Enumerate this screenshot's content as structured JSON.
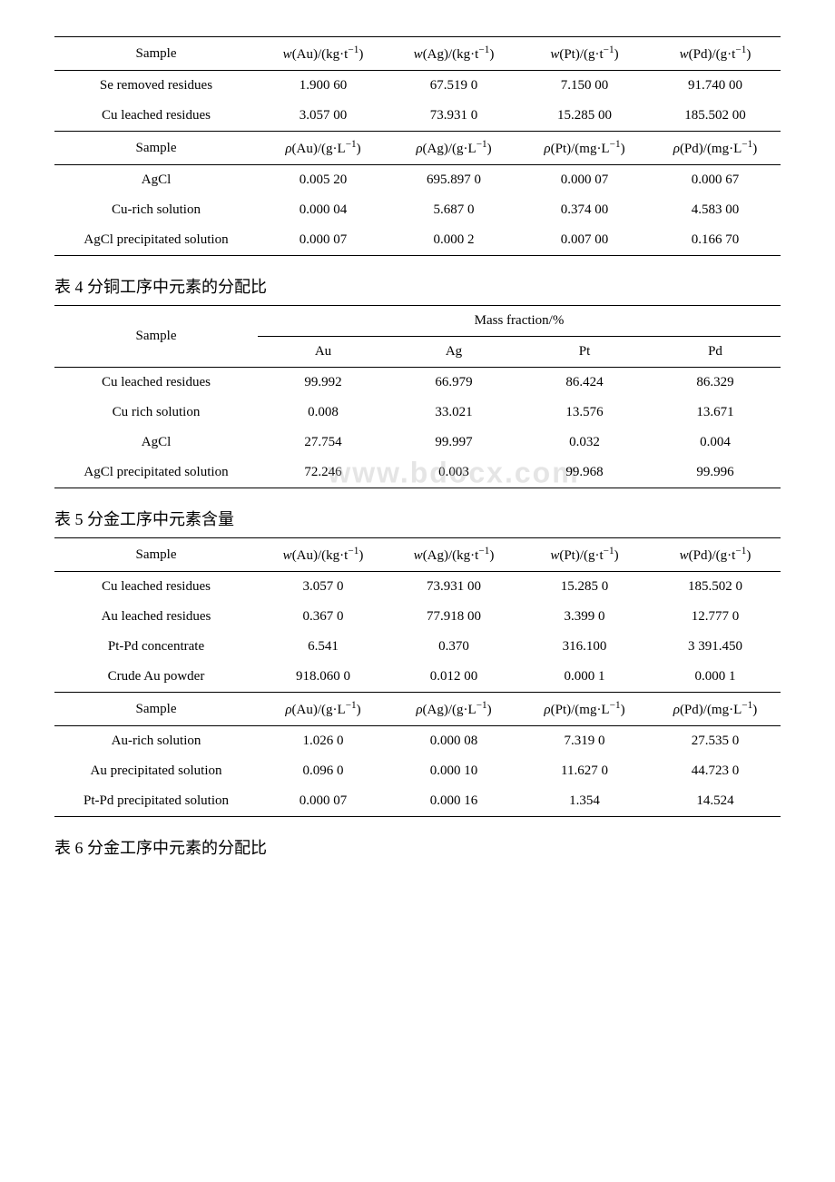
{
  "table3": {
    "headersA": {
      "sample": "Sample",
      "au": "w(Au)/(kg·t⁻¹)",
      "ag": "w(Ag)/(kg·t⁻¹)",
      "pt": "w(Pt)/(g·t⁻¹)",
      "pd": "w(Pd)/(g·t⁻¹)"
    },
    "rowsA": [
      {
        "sample": "Se removed residues",
        "au": "1.900 60",
        "ag": "67.519 0",
        "pt": "7.150 00",
        "pd": "91.740 00"
      },
      {
        "sample": "Cu leached residues",
        "au": "3.057 00",
        "ag": "73.931 0",
        "pt": "15.285 00",
        "pd": "185.502 00"
      }
    ],
    "headersB": {
      "sample": "Sample",
      "au": "ρ(Au)/(g·L⁻¹)",
      "ag": "ρ(Ag)/(g·L⁻¹)",
      "pt": "ρ(Pt)/(mg·L⁻¹)",
      "pd": "ρ(Pd)/(mg·L⁻¹)"
    },
    "rowsB": [
      {
        "sample": "AgCl",
        "au": "0.005 20",
        "ag": "695.897 0",
        "pt": "0.000 07",
        "pd": "0.000 67"
      },
      {
        "sample": "Cu-rich solution",
        "au": "0.000 04",
        "ag": "5.687 0",
        "pt": "0.374 00",
        "pd": "4.583 00"
      },
      {
        "sample": "AgCl precipitated solution",
        "au": "0.000 07",
        "ag": "0.000 2",
        "pt": "0.007 00",
        "pd": "0.166 70"
      }
    ]
  },
  "caption4": "表 4 分铜工序中元素的分配比",
  "table4": {
    "header_sample": "Sample",
    "header_mass": "Mass fraction/%",
    "cols": {
      "au": "Au",
      "ag": "Ag",
      "pt": "Pt",
      "pd": "Pd"
    },
    "rows": [
      {
        "sample": "Cu leached residues",
        "au": "99.992",
        "ag": "66.979",
        "pt": "86.424",
        "pd": "86.329"
      },
      {
        "sample": "Cu rich solution",
        "au": "0.008",
        "ag": "33.021",
        "pt": "13.576",
        "pd": "13.671"
      },
      {
        "sample": "AgCl",
        "au": "27.754",
        "ag": "99.997",
        "pt": "0.032",
        "pd": "0.004"
      },
      {
        "sample": "AgCl precipitated solution",
        "au": "72.246",
        "ag": "0.003",
        "pt": "99.968",
        "pd": "99.996"
      }
    ],
    "watermark": "www.bdocx.com"
  },
  "caption5": "表 5 分金工序中元素含量",
  "table5": {
    "headersA": {
      "sample": "Sample",
      "au": "w(Au)/(kg·t⁻¹)",
      "ag": "w(Ag)/(kg·t⁻¹)",
      "pt": "w(Pt)/(g·t⁻¹)",
      "pd": "w(Pd)/(g·t⁻¹)"
    },
    "rowsA": [
      {
        "sample": "Cu leached residues",
        "au": "3.057 0",
        "ag": "73.931 00",
        "pt": "15.285 0",
        "pd": "185.502 0"
      },
      {
        "sample": "Au leached residues",
        "au": "0.367 0",
        "ag": "77.918 00",
        "pt": "3.399 0",
        "pd": "12.777 0"
      },
      {
        "sample": "Pt-Pd concentrate",
        "au": "6.541",
        "ag": "0.370",
        "pt": "316.100",
        "pd": "3 391.450"
      },
      {
        "sample": "Crude Au powder",
        "au": "918.060 0",
        "ag": "0.012 00",
        "pt": "0.000 1",
        "pd": "0.000 1"
      }
    ],
    "headersB": {
      "sample": "Sample",
      "au": "ρ(Au)/(g·L⁻¹)",
      "ag": "ρ(Ag)/(g·L⁻¹)",
      "pt": "ρ(Pt)/(mg·L⁻¹)",
      "pd": "ρ(Pd)/(mg·L⁻¹)"
    },
    "rowsB": [
      {
        "sample": "Au-rich solution",
        "au": "1.026 0",
        "ag": "0.000 08",
        "pt": "7.319 0",
        "pd": "27.535 0"
      },
      {
        "sample": "Au precipitated solution",
        "au": "0.096 0",
        "ag": "0.000 10",
        "pt": "11.627 0",
        "pd": "44.723 0"
      },
      {
        "sample": "Pt-Pd precipitated solution",
        "au": "0.000 07",
        "ag": "0.000 16",
        "pt": "1.354",
        "pd": "14.524"
      }
    ]
  },
  "caption6": "表 6 分金工序中元素的分配比"
}
